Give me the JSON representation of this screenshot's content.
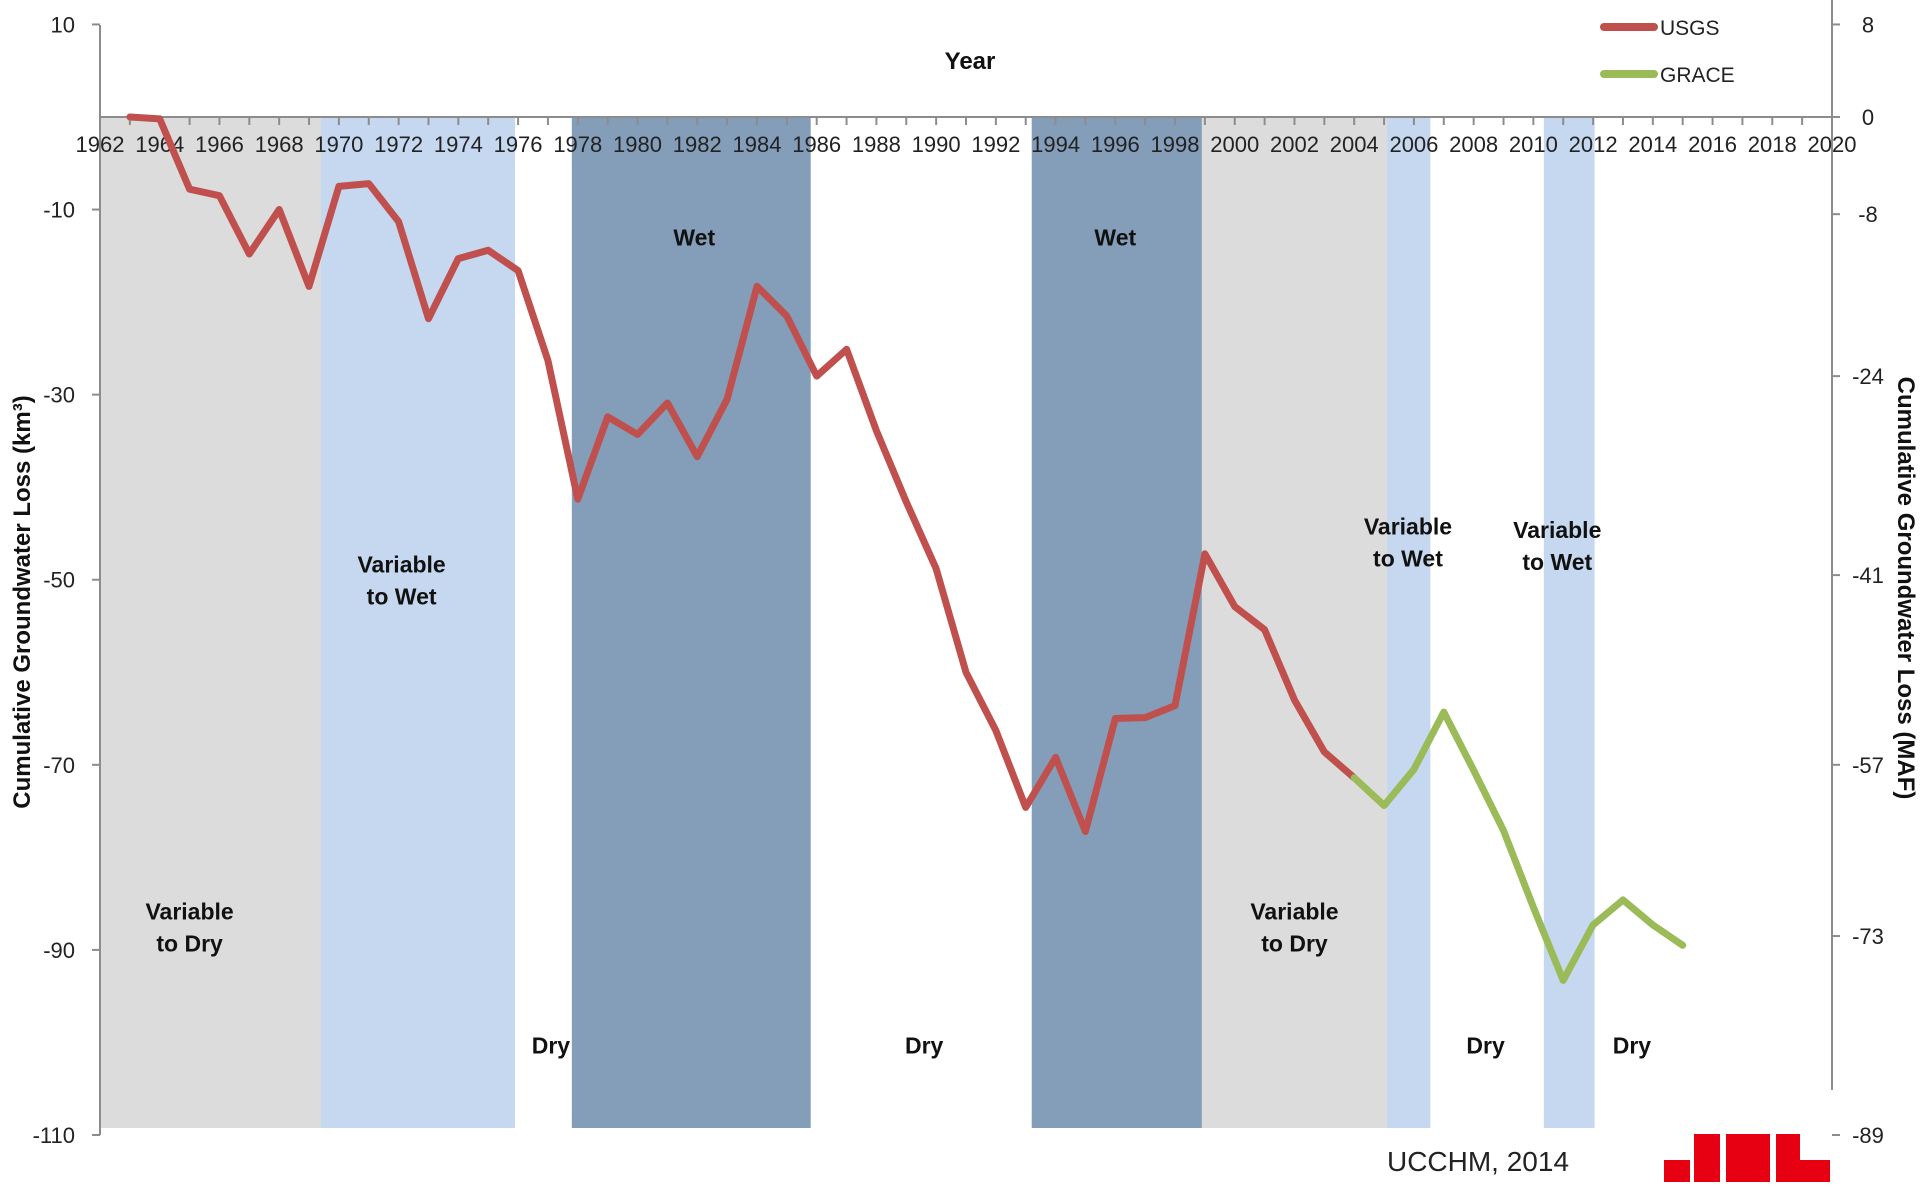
{
  "chart_data": {
    "type": "line",
    "xlabel": "Year",
    "ylabel_left": "Cumulative Groundwater Loss (km³)",
    "ylabel_right": "Cumulative Groundwater Loss (MAF)",
    "xlim": [
      1962,
      2020
    ],
    "ylim": [
      -110,
      10
    ],
    "x_ticks": [
      "1962",
      "1964",
      "1966",
      "1968",
      "1970",
      "1972",
      "1974",
      "1976",
      "1978",
      "1980",
      "1982",
      "1984",
      "1986",
      "1988",
      "1990",
      "1992",
      "1994",
      "1996",
      "1998",
      "2000",
      "2002",
      "2004",
      "2006",
      "2008",
      "2010",
      "2012",
      "2014",
      "2016",
      "2018",
      "2020"
    ],
    "y_ticks_left": [
      {
        "value": 10,
        "label": "10"
      },
      {
        "value": -10,
        "label": "-10"
      },
      {
        "value": -30,
        "label": "-30"
      },
      {
        "value": -50,
        "label": "-50"
      },
      {
        "value": -70,
        "label": "-70"
      },
      {
        "value": -90,
        "label": "-90"
      },
      {
        "value": -110,
        "label": "-110"
      }
    ],
    "y_ticks_right": [
      {
        "value": 10,
        "label": "8"
      },
      {
        "value": 0,
        "label": "0"
      },
      {
        "value": -10.5,
        "label": "-8"
      },
      {
        "value": -28,
        "label": "-24"
      },
      {
        "value": -49.5,
        "label": "-41"
      },
      {
        "value": -70,
        "label": "-57"
      },
      {
        "value": -88.5,
        "label": "-73"
      },
      {
        "value": -110,
        "label": "-89"
      }
    ],
    "legend": {
      "placement": "top-right",
      "entries": [
        "USGS",
        "GRACE"
      ]
    },
    "series": [
      {
        "name": "USGS",
        "color": "#c0504d",
        "x": [
          1963,
          1964,
          1965,
          1966,
          1967,
          1968,
          1969,
          1970,
          1971,
          1972,
          1973,
          1974,
          1975,
          1976,
          1977,
          1978,
          1979,
          1980,
          1981,
          1982,
          1983,
          1984,
          1985,
          1986,
          1987,
          1988,
          1989,
          1990,
          1991,
          1992,
          1993,
          1994,
          1995,
          1996,
          1997,
          1998,
          1999,
          2000,
          2001,
          2002,
          2003,
          2004
        ],
        "y": [
          0,
          -0.2,
          -7.8,
          -8.5,
          -14.8,
          -10,
          -18.3,
          -7.5,
          -7.2,
          -11.3,
          -21.8,
          -15.3,
          -14.4,
          -16.6,
          -26.3,
          -41.3,
          -32.4,
          -34.3,
          -30.9,
          -36.7,
          -30.5,
          -18.3,
          -21.5,
          -28,
          -25.1,
          -33.9,
          -41.6,
          -48.8,
          -60,
          -66.3,
          -74.6,
          -69.2,
          -77.2,
          -65,
          -64.9,
          -63.6,
          -47.2,
          -52.9,
          -55.4,
          -63,
          -68.6,
          -71.4
        ]
      },
      {
        "name": "GRACE",
        "color": "#9bbb59",
        "x": [
          2004,
          2005,
          2006,
          2007,
          2008,
          2009,
          2010,
          2011,
          2012,
          2013,
          2014,
          2015
        ],
        "y": [
          -71.4,
          -74.4,
          -70.5,
          -64.3,
          -70.6,
          -77.1,
          -85.4,
          -93.3,
          -87.3,
          -84.6,
          -87.3,
          -89.5
        ]
      }
    ],
    "regions": [
      {
        "from": 1962,
        "to": 1969.4,
        "color": "#dcdcdc",
        "label": [
          "Variable",
          "to Dry"
        ],
        "label_x": 1965,
        "label_y": -86.7
      },
      {
        "from": 1969.4,
        "to": 1975.9,
        "color": "#c5d8ef",
        "label": [
          "Variable",
          "to Wet"
        ],
        "label_x": 1972.1,
        "label_y": -49.2
      },
      {
        "from": 1975.9,
        "to": 1977.8,
        "color": "#ffffff",
        "label": [
          "Dry"
        ],
        "label_x": 1977.1,
        "label_y": -101.2
      },
      {
        "from": 1977.8,
        "to": 1985.8,
        "color": "#849eb9",
        "label": [
          "Wet"
        ],
        "label_x": 1981.9,
        "label_y": -13.9
      },
      {
        "from": 1985.8,
        "to": 1993.2,
        "color": "#ffffff",
        "label": [
          "Dry"
        ],
        "label_x": 1989.6,
        "label_y": -101.2
      },
      {
        "from": 1993.2,
        "to": 1998.9,
        "color": "#849eb9",
        "label": [
          "Wet"
        ],
        "label_x": 1996,
        "label_y": -13.9
      },
      {
        "from": 1998.9,
        "to": 2005.1,
        "color": "#dcdcdc",
        "label": [
          "Variable",
          "to Dry"
        ],
        "label_x": 2002,
        "label_y": -86.7
      },
      {
        "from": 2005.1,
        "to": 2006.55,
        "color": "#c5d8ef",
        "label": [
          "Variable",
          "to Wet"
        ],
        "label_x": 2005.8,
        "label_y": -45.1
      },
      {
        "from": 2006.55,
        "to": 2010.35,
        "color": "#ffffff",
        "label": [
          "Dry"
        ],
        "label_x": 2008.4,
        "label_y": -101.2
      },
      {
        "from": 2010.35,
        "to": 2012.05,
        "color": "#c5d8ef",
        "label": [
          "Variable",
          "to Wet"
        ],
        "label_x": 2010.8,
        "label_y": -45.5
      },
      {
        "from": 2012.05,
        "to": 2014.5,
        "color": "#ffffff",
        "label": [
          "Dry"
        ],
        "label_x": 2013.3,
        "label_y": -101.2
      }
    ]
  },
  "credit": "UCCHM, 2014",
  "logo_text": "JPL",
  "logo_color": "#e60012",
  "axis_color": "#8c8c8c"
}
